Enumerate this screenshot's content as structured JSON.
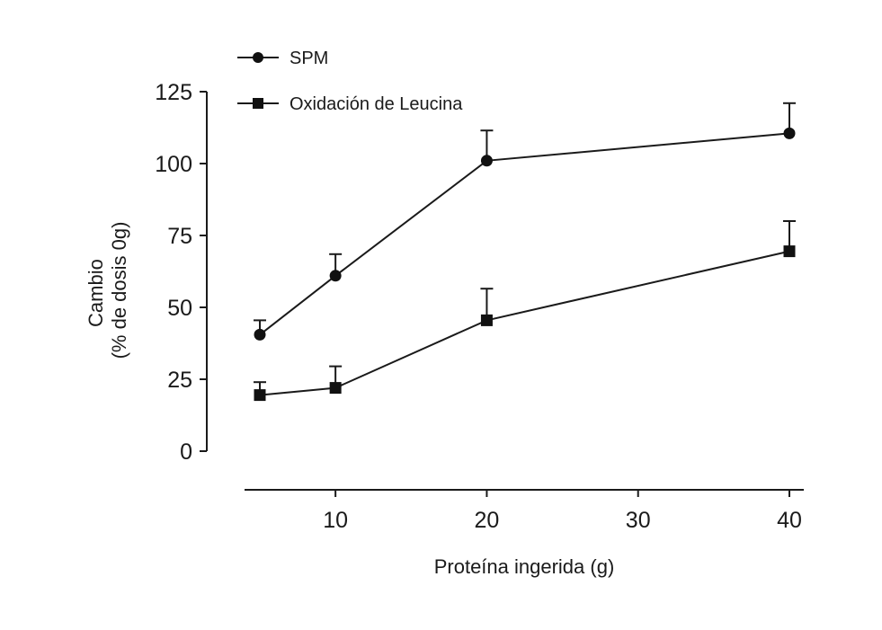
{
  "chart_data": {
    "type": "line",
    "xlabel": "Proteína ingerida (g)",
    "ylabel_lines": [
      "Cambio",
      "(% de dosis 0g)"
    ],
    "xlim": [
      5,
      40
    ],
    "ylim": [
      0,
      125
    ],
    "x_ticks": [
      10,
      20,
      30,
      40
    ],
    "y_ticks": [
      0,
      25,
      50,
      75,
      100,
      125
    ],
    "grid": false,
    "legend_position": "top-left",
    "x": [
      5,
      10,
      20,
      40
    ],
    "series": [
      {
        "name": "SPM",
        "marker": "circle",
        "values": [
          40.5,
          61,
          101,
          110.5
        ],
        "error_upper": [
          45.5,
          68.5,
          111.5,
          121
        ]
      },
      {
        "name": "Oxidación de Leucina",
        "marker": "square",
        "values": [
          19.5,
          22,
          45.5,
          69.5
        ],
        "error_upper": [
          24,
          29.5,
          56.5,
          80
        ]
      }
    ],
    "colors": {
      "ink": "#1a1a1a"
    }
  }
}
